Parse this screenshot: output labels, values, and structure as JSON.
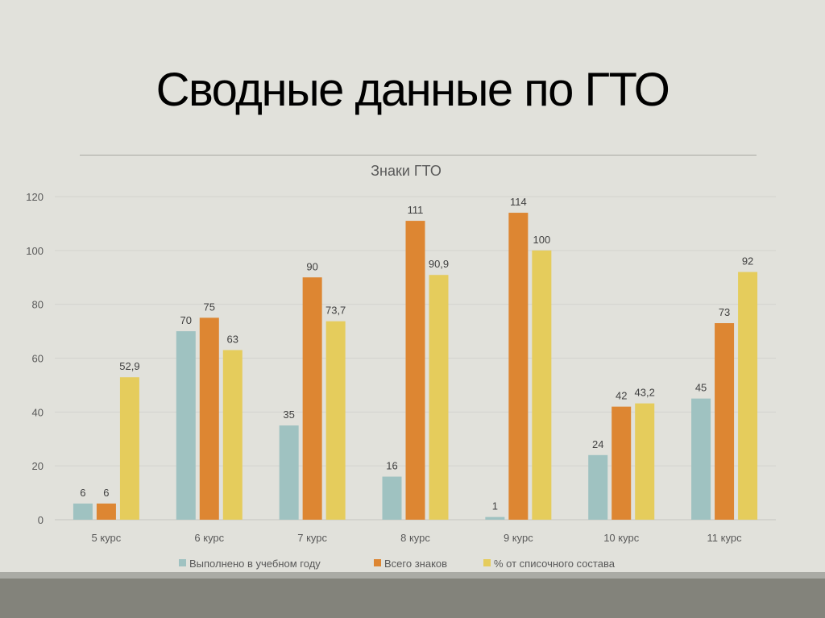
{
  "slide_title": "Сводные данные по ГТО",
  "chart_data": {
    "type": "bar",
    "title": "Знаки ГТО",
    "categories": [
      "5 курс",
      "6 курс",
      "7 курс",
      "8 курс",
      "9 курс",
      "10 курс",
      "11 курс"
    ],
    "series": [
      {
        "name": "Выполнено в учебном году",
        "color": "#9fc2c1",
        "values": [
          6,
          70,
          35,
          16,
          1,
          24,
          45
        ],
        "labels": [
          "6",
          "70",
          "35",
          "16",
          "1",
          "24",
          "45"
        ]
      },
      {
        "name": "Всего знаков",
        "color": "#dd8632",
        "values": [
          6,
          75,
          90,
          111,
          114,
          42,
          73
        ],
        "labels": [
          "6",
          "75",
          "90",
          "111",
          "114",
          "42",
          "73"
        ]
      },
      {
        "name": "% от списочного состава",
        "color": "#e5cc5c",
        "values": [
          52.9,
          63,
          73.7,
          90.9,
          100,
          43.2,
          92
        ],
        "labels": [
          "52,9",
          "63",
          "73,7",
          "90,9",
          "100",
          "43,2",
          "92"
        ]
      }
    ],
    "ylim": [
      0,
      120
    ],
    "yticks": [
      0,
      20,
      40,
      60,
      80,
      100,
      120
    ],
    "grid": true,
    "legend_position": "bottom"
  }
}
